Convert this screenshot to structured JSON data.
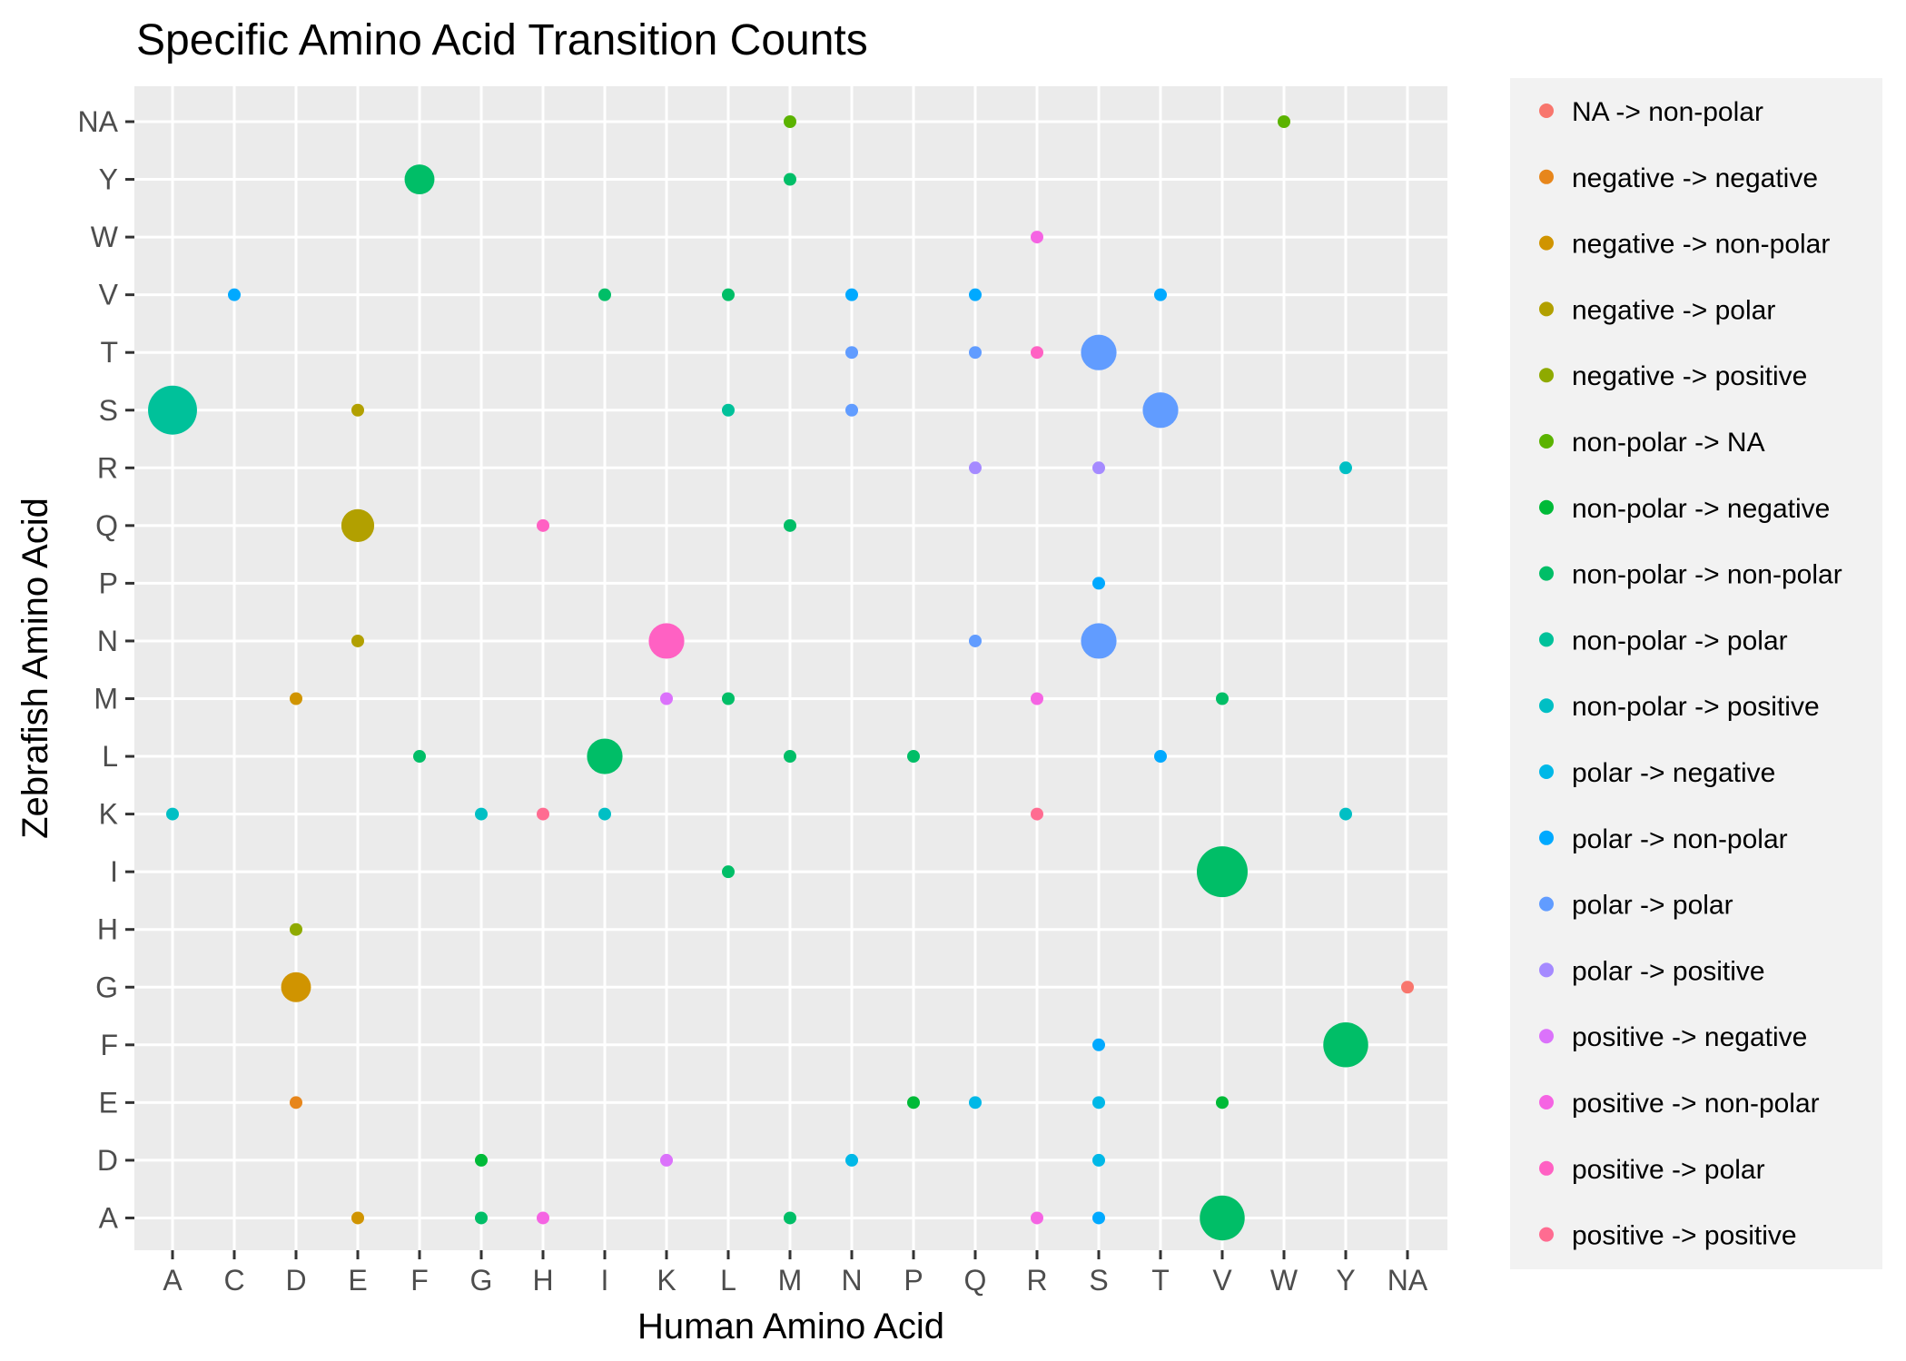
{
  "chart_data": {
    "type": "scatter",
    "title": "Specific Amino Acid Transition Counts",
    "xlabel": "Human Amino Acid",
    "ylabel": "Zebrafish Amino Acid",
    "x_categories": [
      "A",
      "C",
      "D",
      "E",
      "F",
      "G",
      "H",
      "I",
      "K",
      "L",
      "M",
      "N",
      "P",
      "Q",
      "R",
      "S",
      "T",
      "V",
      "W",
      "Y",
      "NA"
    ],
    "y_categories": [
      "A",
      "D",
      "E",
      "F",
      "G",
      "H",
      "I",
      "K",
      "L",
      "M",
      "N",
      "P",
      "Q",
      "R",
      "S",
      "T",
      "V",
      "W",
      "Y",
      "NA"
    ],
    "grid": true,
    "legend_position": "right",
    "series": [
      {
        "name": "NA -> non-polar",
        "color": "#F8766D",
        "points": [
          {
            "x": "NA",
            "y": "G",
            "count": 1
          }
        ]
      },
      {
        "name": "negative -> negative",
        "color": "#E7861B",
        "points": [
          {
            "x": "D",
            "y": "E",
            "count": 1
          }
        ]
      },
      {
        "name": "negative -> non-polar",
        "color": "#D09400",
        "points": [
          {
            "x": "D",
            "y": "M",
            "count": 1
          },
          {
            "x": "E",
            "y": "A",
            "count": 1
          },
          {
            "x": "D",
            "y": "G",
            "count": 5
          }
        ]
      },
      {
        "name": "negative -> polar",
        "color": "#B2A000",
        "points": [
          {
            "x": "E",
            "y": "S",
            "count": 1
          },
          {
            "x": "E",
            "y": "N",
            "count": 1
          },
          {
            "x": "E",
            "y": "Q",
            "count": 6
          }
        ]
      },
      {
        "name": "negative -> positive",
        "color": "#8FAA00",
        "points": [
          {
            "x": "D",
            "y": "H",
            "count": 1
          }
        ]
      },
      {
        "name": "non-polar -> NA",
        "color": "#5BB300",
        "points": [
          {
            "x": "M",
            "y": "NA",
            "count": 1
          },
          {
            "x": "W",
            "y": "NA",
            "count": 1
          }
        ]
      },
      {
        "name": "non-polar -> negative",
        "color": "#00BA38",
        "points": [
          {
            "x": "G",
            "y": "D",
            "count": 1
          },
          {
            "x": "P",
            "y": "E",
            "count": 1
          },
          {
            "x": "V",
            "y": "E",
            "count": 1
          }
        ]
      },
      {
        "name": "non-polar -> non-polar",
        "color": "#00BE67",
        "points": [
          {
            "x": "F",
            "y": "Y",
            "count": 5
          },
          {
            "x": "M",
            "y": "Y",
            "count": 1
          },
          {
            "x": "I",
            "y": "V",
            "count": 1
          },
          {
            "x": "L",
            "y": "V",
            "count": 1
          },
          {
            "x": "M",
            "y": "Q",
            "count": 1
          },
          {
            "x": "L",
            "y": "M",
            "count": 1
          },
          {
            "x": "V",
            "y": "M",
            "count": 1
          },
          {
            "x": "F",
            "y": "L",
            "count": 1
          },
          {
            "x": "I",
            "y": "L",
            "count": 7
          },
          {
            "x": "M",
            "y": "L",
            "count": 1
          },
          {
            "x": "P",
            "y": "L",
            "count": 1
          },
          {
            "x": "L",
            "y": "I",
            "count": 1
          },
          {
            "x": "V",
            "y": "I",
            "count": 14
          },
          {
            "x": "Y",
            "y": "F",
            "count": 11
          },
          {
            "x": "G",
            "y": "A",
            "count": 1
          },
          {
            "x": "M",
            "y": "A",
            "count": 1
          },
          {
            "x": "V",
            "y": "A",
            "count": 11
          }
        ]
      },
      {
        "name": "non-polar -> polar",
        "color": "#00C19A",
        "points": [
          {
            "x": "A",
            "y": "S",
            "count": 13
          },
          {
            "x": "L",
            "y": "S",
            "count": 1
          }
        ]
      },
      {
        "name": "non-polar -> positive",
        "color": "#00BFC4",
        "points": [
          {
            "x": "Y",
            "y": "R",
            "count": 1
          },
          {
            "x": "A",
            "y": "K",
            "count": 1
          },
          {
            "x": "G",
            "y": "K",
            "count": 1
          },
          {
            "x": "I",
            "y": "K",
            "count": 1
          },
          {
            "x": "Y",
            "y": "K",
            "count": 1
          }
        ]
      },
      {
        "name": "polar -> negative",
        "color": "#00B8E7",
        "points": [
          {
            "x": "N",
            "y": "D",
            "count": 1
          },
          {
            "x": "S",
            "y": "D",
            "count": 1
          },
          {
            "x": "Q",
            "y": "E",
            "count": 1
          },
          {
            "x": "S",
            "y": "E",
            "count": 1
          }
        ]
      },
      {
        "name": "polar -> non-polar",
        "color": "#00A9FF",
        "points": [
          {
            "x": "C",
            "y": "V",
            "count": 1
          },
          {
            "x": "N",
            "y": "V",
            "count": 1
          },
          {
            "x": "Q",
            "y": "V",
            "count": 1
          },
          {
            "x": "T",
            "y": "V",
            "count": 1
          },
          {
            "x": "S",
            "y": "P",
            "count": 1
          },
          {
            "x": "T",
            "y": "L",
            "count": 1
          },
          {
            "x": "S",
            "y": "F",
            "count": 1
          },
          {
            "x": "S",
            "y": "A",
            "count": 1
          }
        ]
      },
      {
        "name": "polar -> polar",
        "color": "#619CFF",
        "points": [
          {
            "x": "N",
            "y": "T",
            "count": 1
          },
          {
            "x": "Q",
            "y": "T",
            "count": 1
          },
          {
            "x": "S",
            "y": "T",
            "count": 7
          },
          {
            "x": "N",
            "y": "S",
            "count": 1
          },
          {
            "x": "T",
            "y": "S",
            "count": 7
          },
          {
            "x": "Q",
            "y": "N",
            "count": 1
          },
          {
            "x": "S",
            "y": "N",
            "count": 7
          }
        ]
      },
      {
        "name": "polar -> positive",
        "color": "#A58AFF",
        "points": [
          {
            "x": "Q",
            "y": "R",
            "count": 1
          },
          {
            "x": "S",
            "y": "R",
            "count": 1
          }
        ]
      },
      {
        "name": "positive -> negative",
        "color": "#DB72FB",
        "points": [
          {
            "x": "K",
            "y": "M",
            "count": 1
          },
          {
            "x": "K",
            "y": "D",
            "count": 1
          }
        ]
      },
      {
        "name": "positive -> non-polar",
        "color": "#F564E3",
        "points": [
          {
            "x": "R",
            "y": "W",
            "count": 1
          },
          {
            "x": "R",
            "y": "M",
            "count": 1
          },
          {
            "x": "H",
            "y": "A",
            "count": 1
          },
          {
            "x": "R",
            "y": "A",
            "count": 1
          }
        ]
      },
      {
        "name": "positive -> polar",
        "color": "#FF61C3",
        "points": [
          {
            "x": "R",
            "y": "T",
            "count": 1
          },
          {
            "x": "H",
            "y": "Q",
            "count": 1
          },
          {
            "x": "K",
            "y": "N",
            "count": 7
          }
        ]
      },
      {
        "name": "positive -> positive",
        "color": "#FF6C91",
        "points": [
          {
            "x": "H",
            "y": "K",
            "count": 1
          },
          {
            "x": "R",
            "y": "K",
            "count": 1
          }
        ]
      }
    ]
  }
}
